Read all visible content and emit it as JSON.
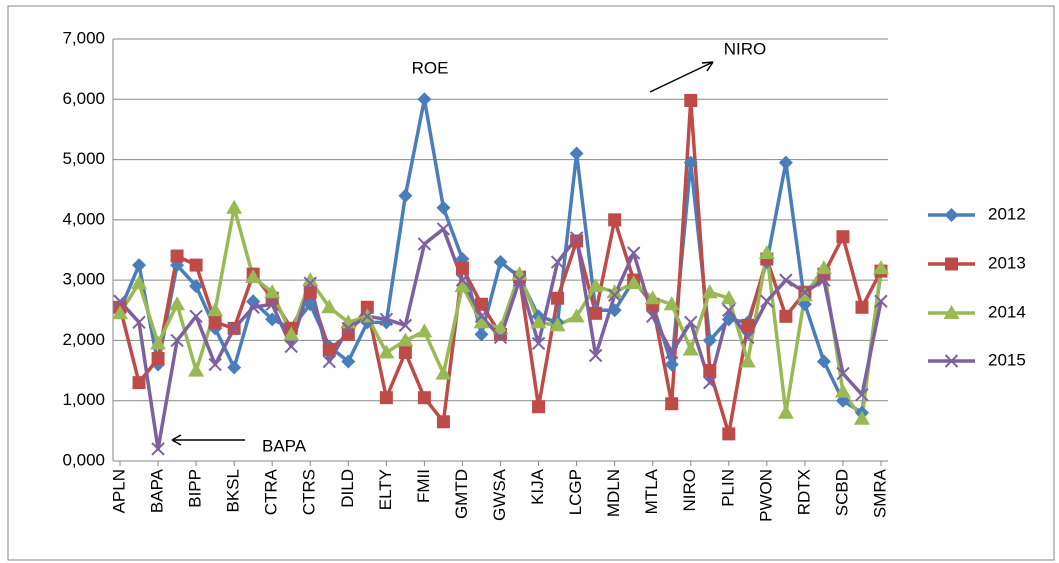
{
  "chart_data": {
    "type": "line",
    "categories": [
      "APLN",
      null,
      "BAPA",
      null,
      "BIPP",
      null,
      "BKSL",
      null,
      "CTRA",
      null,
      "CTRS",
      null,
      "DILD",
      null,
      "ELTY",
      null,
      "FMII",
      null,
      "GMTD",
      null,
      "GWSA",
      null,
      "KIJA",
      null,
      "LCGP",
      null,
      "MDLN",
      null,
      "MTLA",
      null,
      "NIRO",
      null,
      "PLIN",
      null,
      "PWON",
      null,
      "RDTX",
      null,
      "SCBD",
      null,
      "SMRA"
    ],
    "series": [
      {
        "name": "2012",
        "color": "#4a7ebb",
        "values": [
          2.5,
          3.25,
          1.6,
          3.25,
          2.9,
          2.2,
          1.55,
          2.65,
          2.35,
          2.2,
          2.6,
          1.9,
          1.65,
          2.3,
          2.3,
          4.4,
          6.0,
          4.2,
          3.35,
          2.1,
          3.3,
          3.05,
          2.4,
          2.3,
          5.1,
          2.5,
          2.5,
          3.0,
          2.6,
          1.6,
          4.95,
          2.0,
          2.35,
          2.3,
          3.3,
          4.95,
          2.6,
          1.65,
          1.0,
          0.8,
          3.15
        ]
      },
      {
        "name": "2013",
        "color": "#be4b48",
        "values": [
          2.55,
          1.3,
          1.7,
          3.4,
          3.25,
          2.3,
          2.2,
          3.1,
          2.7,
          2.2,
          2.8,
          1.85,
          2.1,
          2.55,
          1.05,
          1.8,
          1.05,
          0.65,
          3.2,
          2.6,
          2.1,
          3.05,
          0.9,
          2.7,
          3.65,
          2.45,
          4.0,
          3.0,
          2.6,
          0.95,
          5.98,
          1.5,
          0.45,
          2.25,
          3.35,
          2.4,
          2.8,
          3.1,
          3.72,
          2.55,
          3.15
        ]
      },
      {
        "name": "2014",
        "color": "#98b954",
        "values": [
          2.45,
          2.95,
          1.95,
          2.6,
          1.5,
          2.5,
          4.2,
          3.05,
          2.8,
          2.1,
          3.0,
          2.55,
          2.3,
          2.4,
          1.8,
          2.0,
          2.15,
          1.45,
          2.9,
          2.3,
          2.2,
          3.1,
          2.3,
          2.25,
          2.4,
          2.9,
          2.8,
          2.95,
          2.7,
          2.6,
          1.85,
          2.8,
          2.7,
          1.65,
          3.45,
          0.8,
          2.75,
          3.2,
          1.15,
          0.7,
          3.2
        ]
      },
      {
        "name": "2015",
        "color": "#7d60a0",
        "values": [
          2.65,
          2.3,
          0.2,
          2.0,
          2.4,
          1.6,
          2.2,
          2.55,
          2.6,
          1.9,
          2.95,
          1.65,
          2.2,
          2.4,
          2.35,
          2.25,
          3.6,
          3.85,
          3.0,
          2.4,
          2.05,
          3.0,
          1.95,
          3.3,
          3.7,
          1.75,
          2.75,
          3.45,
          2.4,
          1.8,
          2.3,
          1.3,
          2.5,
          2.05,
          2.65,
          3.0,
          2.8,
          3.0,
          1.45,
          1.1,
          2.65
        ]
      }
    ],
    "ylim": [
      0,
      7
    ],
    "yticks": [
      {
        "value": 0,
        "label": "0,000"
      },
      {
        "value": 1,
        "label": "1,000"
      },
      {
        "value": 2,
        "label": "2,000"
      },
      {
        "value": 3,
        "label": "3,000"
      },
      {
        "value": 4,
        "label": "4,000"
      },
      {
        "value": 5,
        "label": "5,000"
      },
      {
        "value": 6,
        "label": "6,000"
      },
      {
        "value": 7,
        "label": "7,000"
      }
    ],
    "grid": true,
    "legend": "right",
    "annotations": [
      "ROE",
      "NIRO",
      "BAPA"
    ]
  }
}
